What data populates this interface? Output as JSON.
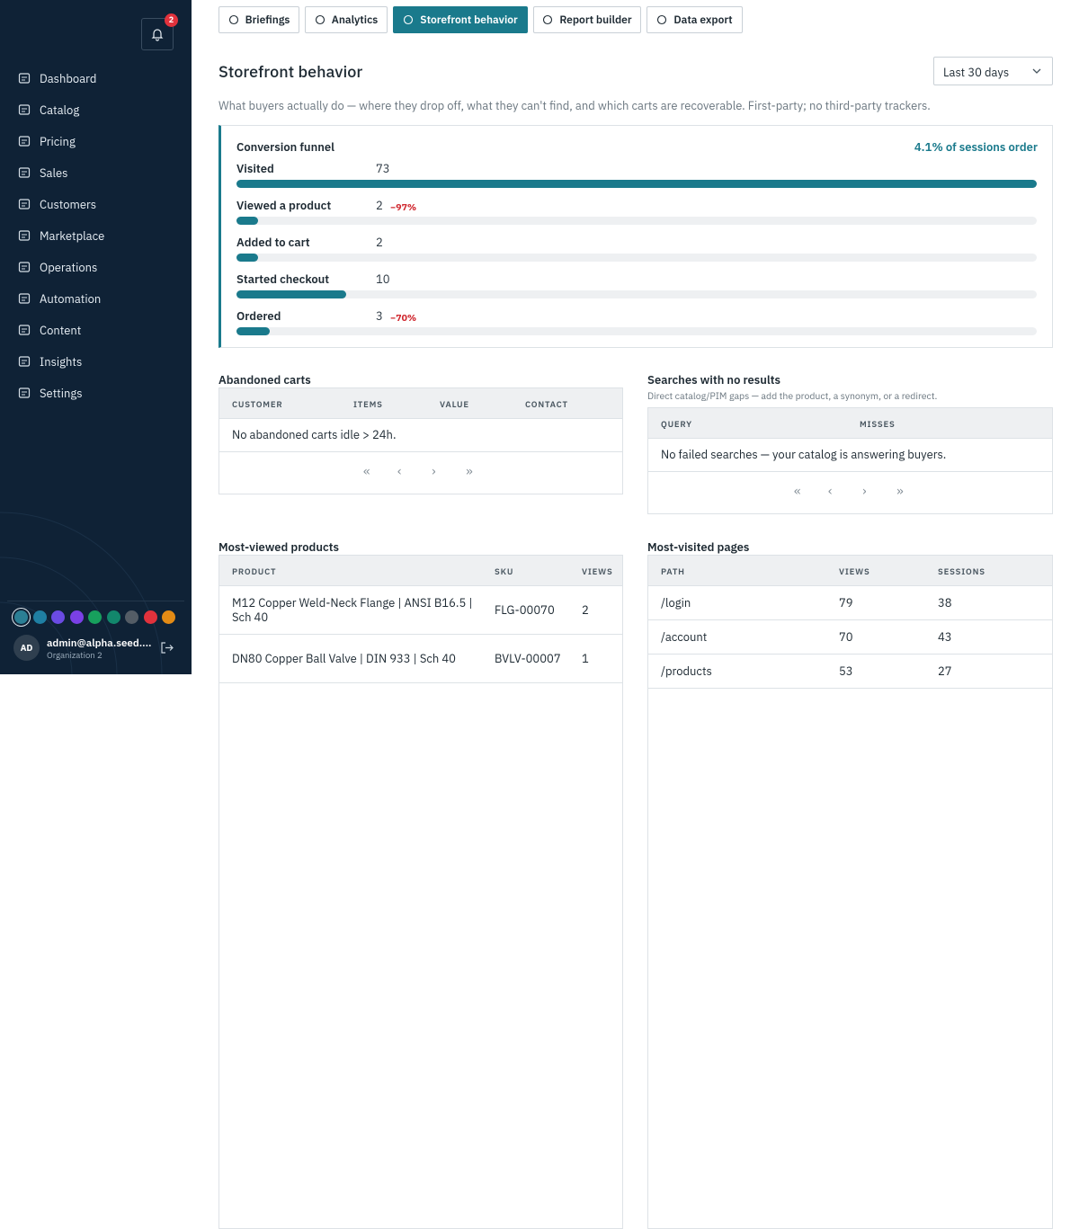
{
  "sidebar": {
    "nav": [
      "Dashboard",
      "Catalog",
      "Pricing",
      "Sales",
      "Customers",
      "Marketplace",
      "Operations",
      "Automation",
      "Content",
      "Insights",
      "Settings"
    ],
    "notification_count": "2",
    "theme_colors": [
      "#2b7f95",
      "#1f7fa3",
      "#6a4be3",
      "#7a40e6",
      "#17a05d",
      "#12876c",
      "#545d66",
      "#e1323c",
      "#e38b15"
    ],
    "user": {
      "initials": "AD",
      "email": "admin@alpha.seed....",
      "org": "Organization 2"
    }
  },
  "tabs": [
    "Briefings",
    "Analytics",
    "Storefront behavior",
    "Report builder",
    "Data export"
  ],
  "active_tab": 2,
  "page": {
    "title": "Storefront behavior",
    "range": "Last 30 days",
    "description": "What buyers actually do — where they drop off, what they can't find, and which carts are recoverable. First-party; no third-party trackers."
  },
  "funnel": {
    "title": "Conversion funnel",
    "summary": "4.1% of sessions order",
    "color": "#1a7a8c",
    "steps": [
      {
        "label": "Visited",
        "value": 73
      },
      {
        "label": "Viewed a product",
        "value": 2,
        "drop": "−97%"
      },
      {
        "label": "Added to cart",
        "value": 2
      },
      {
        "label": "Started checkout",
        "value": 10
      },
      {
        "label": "Ordered",
        "value": 3,
        "drop": "−70%"
      }
    ]
  },
  "abandoned_carts": {
    "title": "Abandoned carts",
    "columns": [
      "Customer",
      "Items",
      "Value",
      "Contact"
    ],
    "empty": "No abandoned carts idle > 24h."
  },
  "no_result_searches": {
    "title": "Searches with no results",
    "subtitle": "Direct catalog/PIM gaps — add the product, a synonym, or a redirect.",
    "columns": [
      "Query",
      "Misses"
    ],
    "empty": "No failed searches — your catalog is answering buyers."
  },
  "most_viewed_products": {
    "title": "Most-viewed products",
    "columns": [
      "Product",
      "SKU",
      "Views"
    ],
    "rows": [
      [
        "M12 Copper Weld-Neck Flange | ANSI B16.5 | Sch 40",
        "FLG-00070",
        2
      ],
      [
        "DN80 Copper Ball Valve | DIN 933 | Sch 40",
        "BVLV-00007",
        1
      ]
    ]
  },
  "most_visited_pages": {
    "title": "Most-visited pages",
    "columns": [
      "Path",
      "Views",
      "Sessions"
    ],
    "rows": [
      [
        "/login",
        79,
        38
      ],
      [
        "/account",
        70,
        43
      ],
      [
        "/products",
        53,
        27
      ]
    ]
  }
}
